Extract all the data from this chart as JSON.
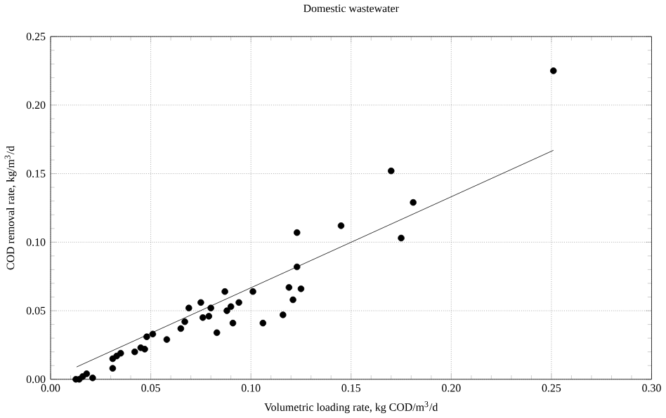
{
  "chart_data": {
    "type": "scatter",
    "title": "Domestic wastewater",
    "xlabel": "Volumetric loading rate, kg COD/m$^{3}$/d",
    "ylabel": "COD removal rate, kg/m$^{3}$/d",
    "xlim": [
      0,
      0.3
    ],
    "ylim": [
      0,
      0.25
    ],
    "xticks": [
      {
        "value": 0,
        "label": "0.00"
      },
      {
        "value": 0.05,
        "label": "0.05"
      },
      {
        "value": 0.1,
        "label": "0.10"
      },
      {
        "value": 0.15,
        "label": "0.15"
      },
      {
        "value": 0.2,
        "label": "0.20"
      },
      {
        "value": 0.25,
        "label": "0.25"
      },
      {
        "value": 0.3,
        "label": "0.30"
      }
    ],
    "yticks": [
      {
        "value": 0,
        "label": "0.00"
      },
      {
        "value": 0.05,
        "label": "0.05"
      },
      {
        "value": 0.1,
        "label": "0.10"
      },
      {
        "value": 0.15,
        "label": "0.15"
      },
      {
        "value": 0.2,
        "label": "0.20"
      },
      {
        "value": 0.25,
        "label": "0.25"
      }
    ],
    "grid": true,
    "series": [
      {
        "marker": "circle",
        "color": "#000000",
        "x": [
          0.0126,
          0.0143,
          0.016,
          0.018,
          0.021,
          0.031,
          0.031,
          0.033,
          0.035,
          0.042,
          0.045,
          0.047,
          0.048,
          0.051,
          0.058,
          0.065,
          0.067,
          0.069,
          0.075,
          0.076,
          0.079,
          0.08,
          0.083,
          0.087,
          0.088,
          0.09,
          0.091,
          0.094,
          0.101,
          0.106,
          0.116,
          0.119,
          0.121,
          0.123,
          0.123,
          0.125,
          0.145,
          0.17,
          0.175,
          0.181,
          0.251
        ],
        "values": [
          0.0,
          0.0,
          0.002,
          0.004,
          0.001,
          0.008,
          0.015,
          0.017,
          0.019,
          0.02,
          0.023,
          0.022,
          0.031,
          0.033,
          0.029,
          0.037,
          0.042,
          0.052,
          0.056,
          0.045,
          0.046,
          0.052,
          0.034,
          0.064,
          0.05,
          0.053,
          0.041,
          0.056,
          0.064,
          0.041,
          0.047,
          0.067,
          0.058,
          0.082,
          0.107,
          0.066,
          0.112,
          0.152,
          0.103,
          0.129,
          0.225
        ]
      },
      {
        "type": "line",
        "color": "#000000",
        "x": [
          0.013,
          0.251
        ],
        "values": [
          0.009,
          0.167
        ]
      }
    ]
  }
}
